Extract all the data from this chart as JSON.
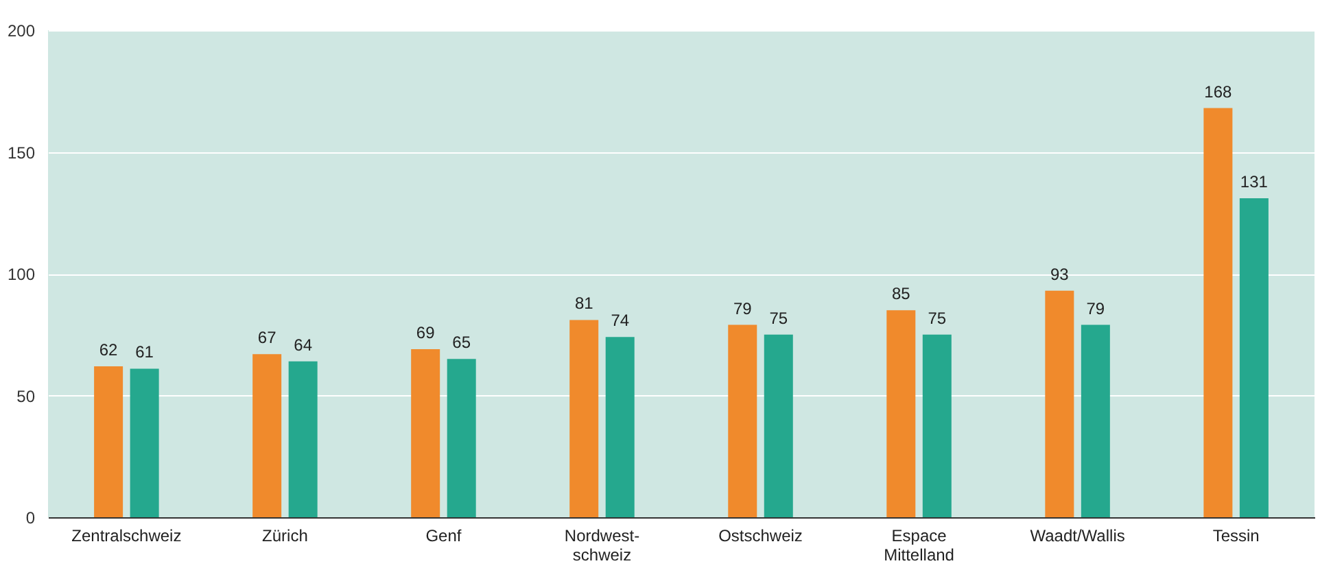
{
  "chart_data": {
    "type": "bar",
    "categories": [
      "Zentralschweiz",
      "Zürich",
      "Genf",
      "Nordwest-\nschweiz",
      "Ostschweiz",
      "Espace\nMittelland",
      "Waadt/Wallis",
      "Tessin"
    ],
    "series": [
      {
        "color": "#f08a2c",
        "values": [
          62,
          67,
          69,
          81,
          79,
          85,
          93,
          168
        ]
      },
      {
        "color": "#25a88e",
        "values": [
          61,
          64,
          65,
          74,
          75,
          75,
          79,
          131
        ]
      }
    ],
    "ylim": [
      0,
      200
    ],
    "yticks": [
      0,
      50,
      100,
      150,
      200
    ],
    "grid": "y",
    "data_labels": true
  }
}
